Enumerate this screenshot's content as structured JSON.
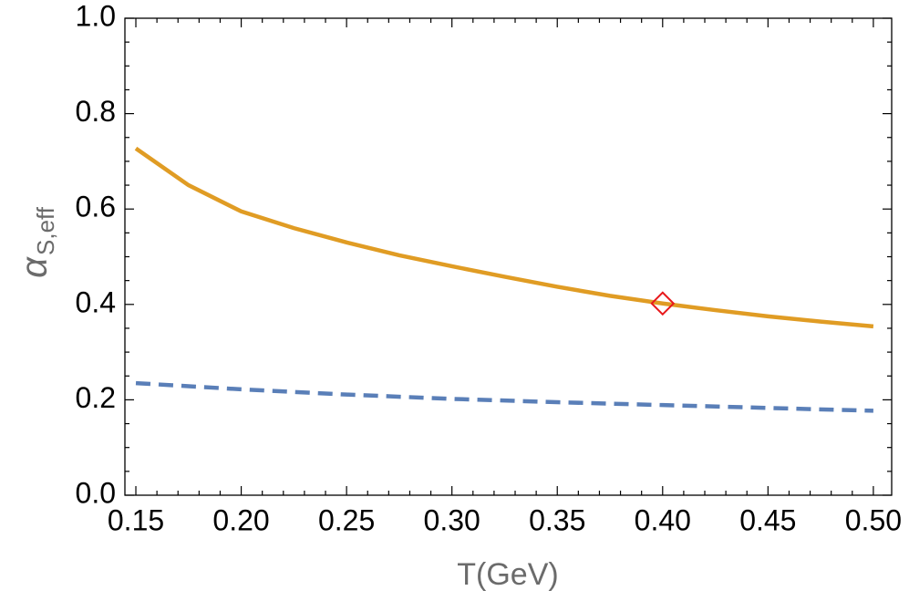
{
  "chart_data": {
    "type": "line",
    "x_label": "T(GeV)",
    "y_label": "α",
    "y_label_subscript": "S,eff",
    "xlim": [
      0.1448,
      0.5087
    ],
    "ylim": [
      0,
      1
    ],
    "xticks": [
      0.15,
      {
        "value": 0.2,
        "label": "0.20"
      },
      0.25,
      {
        "value": 0.3,
        "label": "0.30"
      },
      0.35,
      {
        "value": 0.4,
        "label": "0.40"
      },
      0.45,
      {
        "value": 0.5,
        "label": "0.50"
      }
    ],
    "yticks": [
      {
        "value": 0,
        "label": "0.0"
      },
      0.2,
      0.4,
      0.6,
      0.8,
      {
        "value": 1,
        "label": "1.0"
      }
    ],
    "series": [
      {
        "color": "#e09c24",
        "style": "solid",
        "x": [
          0.15,
          0.175,
          0.2,
          0.225,
          0.25,
          0.275,
          0.3,
          0.325,
          0.35,
          0.375,
          0.4,
          0.425,
          0.45,
          0.475,
          0.5
        ],
        "values": [
          0.727,
          0.65,
          0.595,
          0.56,
          0.53,
          0.503,
          0.48,
          0.458,
          0.437,
          0.418,
          0.402,
          0.388,
          0.375,
          0.364,
          0.354
        ]
      },
      {
        "color": "#5a7fb8",
        "style": "dashed",
        "x": [
          0.15,
          0.2,
          0.25,
          0.3,
          0.35,
          0.4,
          0.45,
          0.5
        ],
        "values": [
          0.235,
          0.222,
          0.211,
          0.202,
          0.195,
          0.189,
          0.183,
          0.177
        ]
      },
      {
        "color": "#e8191c",
        "style": "diamond",
        "x": [
          0.4
        ],
        "values": [
          0.402
        ]
      }
    ]
  }
}
